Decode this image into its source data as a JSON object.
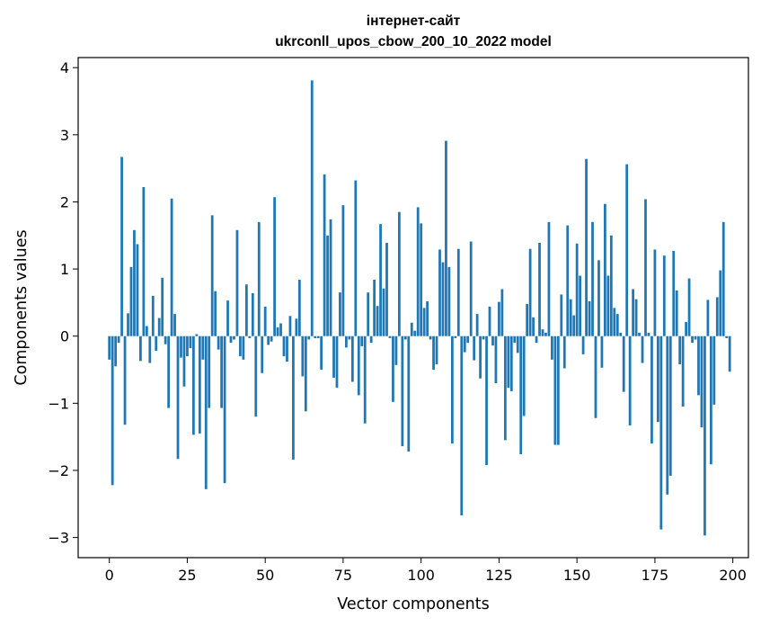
{
  "chart_data": {
    "type": "bar",
    "title": [
      "інтернет-сайт",
      "ukrconll_upos_cbow_200_10_2022 model"
    ],
    "xlabel": "Vector components",
    "ylabel": "Components values",
    "xlim": [
      -10,
      205
    ],
    "ylim": [
      -3.3,
      4.15
    ],
    "xticks": [
      0,
      25,
      50,
      75,
      100,
      125,
      150,
      175,
      200
    ],
    "xtick_labels": [
      "0",
      "25",
      "50",
      "75",
      "100",
      "125",
      "150",
      "175",
      "200"
    ],
    "yticks": [
      -3,
      -2,
      -1,
      0,
      1,
      2,
      3,
      4
    ],
    "ytick_labels": [
      "−3",
      "−2",
      "−1",
      "0",
      "1",
      "2",
      "3",
      "4"
    ],
    "grid": false,
    "bar_color": "#1f77b4",
    "bar_width": 0.8,
    "x_start": 0,
    "values": [
      -0.35,
      -2.22,
      -0.45,
      -0.1,
      2.67,
      -1.32,
      0.34,
      1.03,
      1.58,
      1.37,
      -0.37,
      2.22,
      0.15,
      -0.4,
      0.6,
      -0.22,
      0.27,
      0.87,
      -0.12,
      -1.07,
      2.05,
      0.33,
      -1.83,
      -0.32,
      -0.75,
      -0.3,
      -0.18,
      -1.47,
      0.03,
      -1.45,
      -0.35,
      -2.28,
      -1.07,
      1.8,
      0.67,
      -0.2,
      -1.07,
      -2.19,
      0.53,
      -0.1,
      -0.05,
      1.58,
      -0.3,
      -0.35,
      0.77,
      -0.03,
      0.64,
      -1.2,
      1.7,
      -0.55,
      0.44,
      -0.13,
      -0.08,
      2.07,
      0.13,
      0.19,
      -0.3,
      -0.38,
      0.3,
      -1.84,
      0.26,
      0.84,
      -0.6,
      -1.12,
      -0.05,
      3.81,
      -0.03,
      -0.03,
      -0.5,
      2.41,
      1.5,
      1.74,
      -0.62,
      -0.77,
      0.65,
      1.95,
      -0.17,
      -0.05,
      -0.68,
      2.32,
      -0.88,
      -0.15,
      -1.3,
      0.65,
      -0.1,
      0.84,
      0.45,
      1.67,
      0.71,
      1.39,
      -0.03,
      -0.98,
      -0.43,
      1.85,
      -1.64,
      -0.05,
      -1.72,
      0.2,
      0.08,
      1.92,
      1.68,
      0.42,
      0.52,
      -0.05,
      -0.5,
      -0.42,
      1.29,
      1.1,
      2.91,
      1.03,
      -1.6,
      -0.03,
      1.3,
      -2.67,
      -0.24,
      -0.1,
      1.41,
      -0.36,
      0.33,
      -0.63,
      -0.05,
      -1.92,
      0.44,
      -0.14,
      -0.7,
      0.51,
      0.7,
      -1.55,
      -0.77,
      -0.82,
      -0.1,
      -0.25,
      -1.76,
      -1.19,
      0.48,
      1.3,
      0.28,
      -0.1,
      1.39,
      0.1,
      0.05,
      1.7,
      -0.35,
      -1.62,
      -1.62,
      0.62,
      -0.48,
      1.65,
      0.55,
      0.31,
      1.38,
      0.9,
      -0.27,
      2.64,
      0.52,
      1.7,
      -1.22,
      1.13,
      -0.47,
      1.97,
      0.9,
      1.5,
      0.42,
      0.33,
      0.05,
      -0.83,
      2.56,
      -1.33,
      0.7,
      0.55,
      0.05,
      -0.4,
      2.04,
      0.05,
      -1.6,
      1.29,
      -1.28,
      -2.88,
      1.2,
      -2.36,
      -2.08,
      1.27,
      0.68,
      -0.42,
      -1.05,
      0.21,
      0.86,
      -0.1,
      -0.05,
      -0.88,
      -1.36,
      -2.97,
      0.54,
      -1.91,
      -1.02,
      0.58,
      0.98,
      1.7,
      -0.03,
      -0.53
    ]
  }
}
